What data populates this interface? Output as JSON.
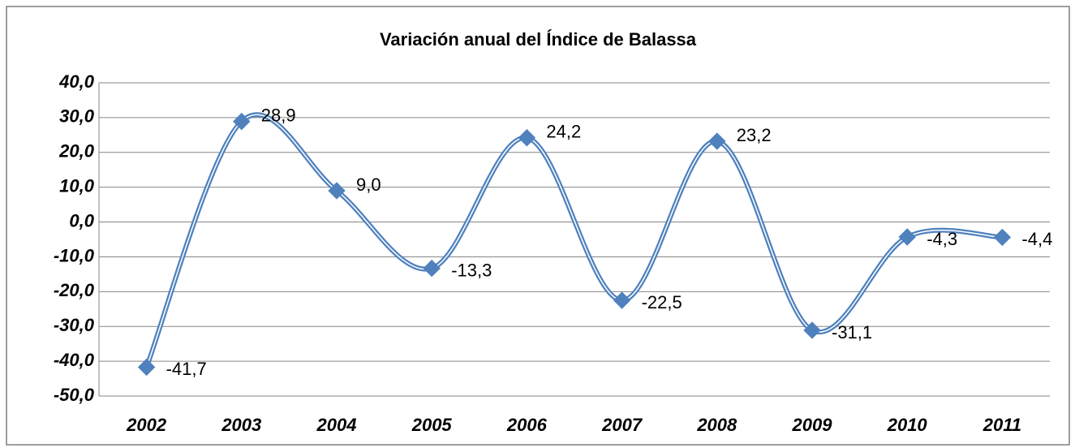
{
  "chart_data": {
    "type": "line",
    "title": "Variación anual del Índice de Balassa",
    "categories": [
      "2002",
      "2003",
      "2004",
      "2005",
      "2006",
      "2007",
      "2008",
      "2009",
      "2010",
      "2011"
    ],
    "values": [
      -41.7,
      28.9,
      9.0,
      -13.3,
      24.2,
      -22.5,
      23.2,
      -31.1,
      -4.3,
      -4.4
    ],
    "value_labels": [
      "-41,7",
      "28,9",
      "9,0",
      "-13,3",
      "24,2",
      "-22,5",
      "23,2",
      "-31,1",
      "-4,3",
      "-4,4"
    ],
    "color": "#4f81bd",
    "ylim": [
      -50,
      40
    ],
    "yticks": [
      {
        "value": -50,
        "label": "-50,0"
      },
      {
        "value": -40,
        "label": "-40,0"
      },
      {
        "value": -30,
        "label": "-30,0"
      },
      {
        "value": -20,
        "label": "-20,0"
      },
      {
        "value": -10,
        "label": "-10,0"
      },
      {
        "value": 0,
        "label": "0,0"
      },
      {
        "value": 10,
        "label": "10,0"
      },
      {
        "value": 20,
        "label": "20,0"
      },
      {
        "value": 30,
        "label": "30,0"
      },
      {
        "value": 40,
        "label": "40,0"
      }
    ],
    "grid": true
  }
}
